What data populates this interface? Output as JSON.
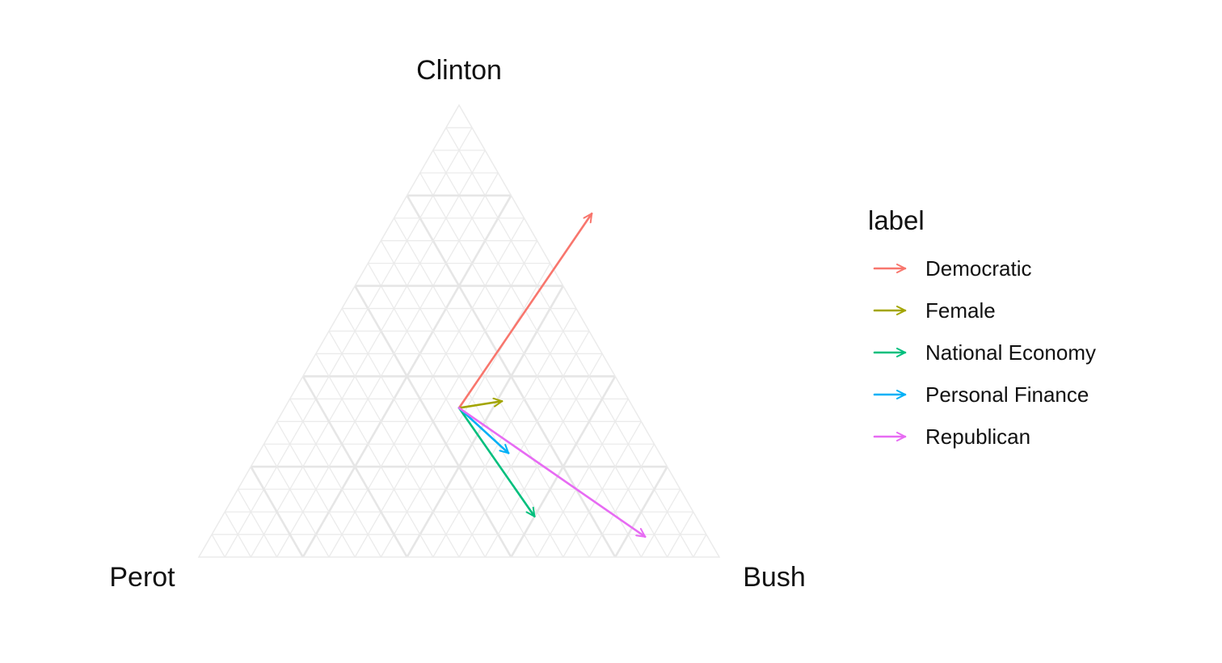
{
  "chart_data": {
    "type": "ternary-arrows",
    "vertex_labels": {
      "top": "Clinton",
      "left": "Perot",
      "right": "Bush"
    },
    "grid": true,
    "grid_minor_step": 0.05,
    "grid_major_step": 0.2,
    "legend": {
      "title": "label",
      "placement": "right"
    },
    "series": [
      {
        "name": "Democratic",
        "color": "#F8766D",
        "start": {
          "Clinton": 0.33,
          "Bush": 0.335,
          "Perot": 0.335
        },
        "end": {
          "Clinton": 0.76,
          "Bush": 0.375,
          "Perot": -0.135
        }
      },
      {
        "name": "Female",
        "color": "#A3A500",
        "start": {
          "Clinton": 0.33,
          "Bush": 0.335,
          "Perot": 0.335
        },
        "end": {
          "Clinton": 0.345,
          "Bush": 0.41,
          "Perot": 0.245
        }
      },
      {
        "name": "National Economy",
        "color": "#00BF7D",
        "start": {
          "Clinton": 0.33,
          "Bush": 0.335,
          "Perot": 0.335
        },
        "end": {
          "Clinton": 0.09,
          "Bush": 0.6,
          "Perot": 0.31
        }
      },
      {
        "name": "Personal Finance",
        "color": "#00B0F6",
        "start": {
          "Clinton": 0.33,
          "Bush": 0.335,
          "Perot": 0.335
        },
        "end": {
          "Clinton": 0.23,
          "Bush": 0.48,
          "Perot": 0.29
        }
      },
      {
        "name": "Republican",
        "color": "#E76BF3",
        "start": {
          "Clinton": 0.33,
          "Bush": 0.335,
          "Perot": 0.335
        },
        "end": {
          "Clinton": 0.045,
          "Bush": 0.835,
          "Perot": 0.12
        }
      }
    ]
  }
}
